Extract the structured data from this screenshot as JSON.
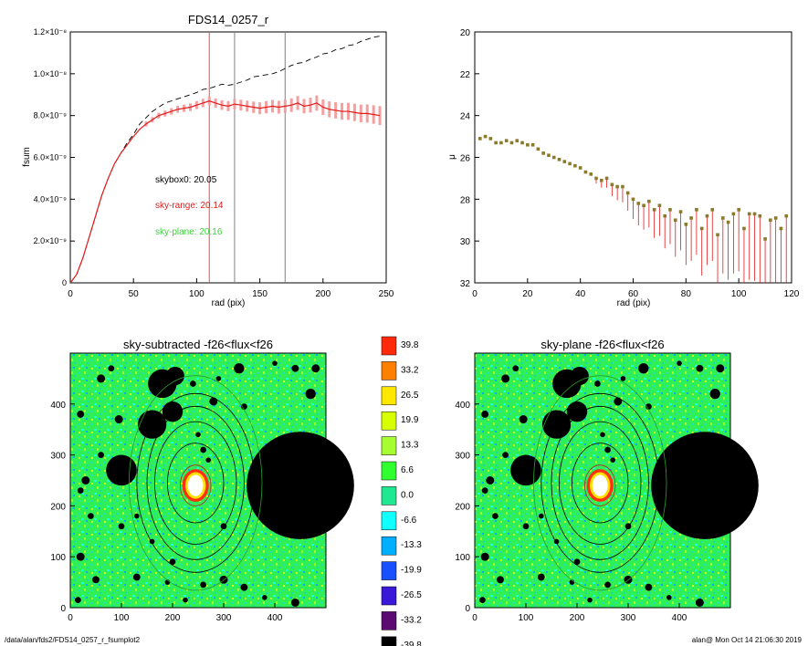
{
  "colors": {
    "axis": "#000000",
    "red": "#e21a1a",
    "pink": "#f4a0a0",
    "green": "#3cd23c",
    "vline_red": "#e05050",
    "vline_gray": "#808080",
    "olive": "#8a7a2a"
  },
  "footer": {
    "left": "/data/alan/fds2/FDS14_0257_r_fsumplot2",
    "right": "alan@  Mon Oct 14 21:06:30 2019"
  },
  "chart_data": [
    {
      "type": "line",
      "title": "FDS14_0257_r",
      "xlabel": "rad (pix)",
      "ylabel": "fsum",
      "xlim": [
        0,
        250
      ],
      "ylim": [
        0,
        1.2e-08
      ],
      "x_ticks": [
        "0",
        "50",
        "100",
        "150",
        "200",
        "250"
      ],
      "y_ticks": [
        "0",
        "2.0×10⁻⁹",
        "4.0×10⁻⁹",
        "6.0×10⁻⁹",
        "8.0×10⁻⁹",
        "1.0×10⁻⁸",
        "1.2×10⁻⁸"
      ],
      "vlines": [
        110,
        130,
        170
      ],
      "annotations": [
        {
          "text": "skybox0: 20.05",
          "color": "black"
        },
        {
          "text": "sky-range: 20.14",
          "color": "red"
        },
        {
          "text": "sky-plane: 20.16",
          "color": "green"
        }
      ],
      "series": [
        {
          "style": "dashed",
          "x": [
            0,
            5,
            10,
            15,
            20,
            25,
            30,
            35,
            40,
            45,
            50,
            55,
            60,
            65,
            70,
            75,
            80,
            85,
            90,
            95,
            100,
            105,
            110,
            115,
            120,
            125,
            130,
            135,
            140,
            145,
            150,
            155,
            160,
            165,
            170,
            175,
            180,
            185,
            190,
            195,
            200,
            205,
            210,
            215,
            220,
            225,
            230,
            235,
            240,
            245
          ],
          "y": [
            0,
            4e-10,
            1.2e-09,
            2.2e-09,
            3.2e-09,
            4.2e-09,
            5e-09,
            5.7e-09,
            6.2e-09,
            6.7e-09,
            7.1e-09,
            7.6e-09,
            7.9e-09,
            8.2e-09,
            8.4e-09,
            8.6e-09,
            8.7e-09,
            8.8e-09,
            8.9e-09,
            9e-09,
            9.1e-09,
            9.25e-09,
            9.3e-09,
            9.4e-09,
            9.5e-09,
            9.45e-09,
            9.5e-09,
            9.6e-09,
            9.7e-09,
            9.85e-09,
            9.9e-09,
            9.95e-09,
            1e-08,
            1.01e-08,
            1.025e-08,
            1.04e-08,
            1.05e-08,
            1.055e-08,
            1.07e-08,
            1.08e-08,
            1.095e-08,
            1.1e-08,
            1.115e-08,
            1.12e-08,
            1.135e-08,
            1.14e-08,
            1.155e-08,
            1.165e-08,
            1.175e-08,
            1.18e-08
          ]
        },
        {
          "style": "solid",
          "x": [
            0,
            5,
            10,
            15,
            20,
            25,
            30,
            35,
            40,
            45,
            50,
            55,
            60,
            65,
            70,
            75,
            80,
            85,
            90,
            95,
            100,
            105,
            110,
            115,
            120,
            125,
            130,
            135,
            140,
            145,
            150,
            155,
            160,
            165,
            170,
            175,
            180,
            185,
            190,
            195,
            200,
            205,
            210,
            215,
            220,
            225,
            230,
            235,
            240,
            245
          ],
          "y": [
            0,
            4e-10,
            1.2e-09,
            2.2e-09,
            3.2e-09,
            4.2e-09,
            5e-09,
            5.7e-09,
            6.2e-09,
            6.6e-09,
            7e-09,
            7.35e-09,
            7.6e-09,
            7.8e-09,
            8e-09,
            8.1e-09,
            8.2e-09,
            8.3e-09,
            8.35e-09,
            8.4e-09,
            8.5e-09,
            8.6e-09,
            8.7e-09,
            8.6e-09,
            8.5e-09,
            8.45e-09,
            8.55e-09,
            8.5e-09,
            8.45e-09,
            8.4e-09,
            8.35e-09,
            8.4e-09,
            8.45e-09,
            8.4e-09,
            8.45e-09,
            8.5e-09,
            8.6e-09,
            8.45e-09,
            8.5e-09,
            8.6e-09,
            8.4e-09,
            8.3e-09,
            8.25e-09,
            8.2e-09,
            8.2e-09,
            8.15e-09,
            8.1e-09,
            8.1e-09,
            8.05e-09,
            8e-09
          ]
        }
      ]
    },
    {
      "type": "scatter",
      "title": "",
      "xlabel": "rad (pix)",
      "ylabel": "μ",
      "xlim": [
        0,
        120
      ],
      "ylim": [
        32,
        20
      ],
      "x_ticks": [
        "0",
        "20",
        "40",
        "60",
        "80",
        "100",
        "120"
      ],
      "y_ticks": [
        "20",
        "22",
        "24",
        "26",
        "28",
        "30",
        "32"
      ],
      "series": [
        {
          "x": [
            2,
            4,
            6,
            8,
            10,
            12,
            14,
            16,
            18,
            20,
            22,
            24,
            26,
            28,
            30,
            32,
            34,
            36,
            38,
            40,
            42,
            44,
            46,
            48,
            50,
            52,
            54,
            56,
            58,
            60,
            62,
            64,
            66,
            68,
            70,
            72,
            74,
            76,
            78,
            80,
            82,
            84,
            86,
            88,
            90,
            92,
            94,
            96,
            98,
            100,
            102,
            104,
            106,
            108,
            110,
            112,
            114,
            116,
            118
          ],
          "y": [
            25.1,
            25.0,
            25.1,
            25.3,
            25.3,
            25.2,
            25.3,
            25.2,
            25.3,
            25.4,
            25.4,
            25.6,
            25.8,
            25.9,
            26.0,
            26.1,
            26.2,
            26.3,
            26.4,
            26.5,
            26.7,
            26.8,
            27.0,
            27.1,
            27.0,
            27.3,
            27.4,
            27.4,
            27.7,
            28.0,
            28.2,
            28.3,
            28.1,
            28.5,
            28.3,
            28.8,
            28.5,
            29.0,
            28.6,
            29.2,
            28.9,
            28.5,
            29.4,
            28.8,
            28.5,
            29.7,
            28.9,
            29.1,
            28.7,
            28.5,
            29.4,
            28.7,
            28.7,
            28.8,
            29.9,
            29.0,
            28.9,
            29.4,
            28.8
          ]
        }
      ]
    },
    {
      "type": "heatmap",
      "title": "sky-subtracted -f26<flux<f26",
      "xlim": [
        0,
        500
      ],
      "ylim": [
        0,
        500
      ],
      "x_ticks": [
        "0",
        "100",
        "200",
        "300",
        "400"
      ],
      "y_ticks": [
        "0",
        "100",
        "200",
        "300",
        "400"
      ]
    },
    {
      "type": "heatmap",
      "title": "sky-plane -f26<flux<f26",
      "xlim": [
        0,
        500
      ],
      "ylim": [
        0,
        500
      ],
      "x_ticks": [
        "0",
        "100",
        "200",
        "300",
        "400"
      ],
      "y_ticks": [
        "0",
        "100",
        "200",
        "300",
        "400"
      ]
    }
  ],
  "colorbar": {
    "labels": [
      "39.8",
      "33.2",
      "26.5",
      "19.9",
      "13.3",
      "6.6",
      "0.0",
      "-6.6",
      "-13.3",
      "-19.9",
      "-26.5",
      "-33.2",
      "-39.8"
    ],
    "colors": [
      "#ff2a0a",
      "#ff8000",
      "#ffe800",
      "#d8ff00",
      "#a8ff30",
      "#30ff30",
      "#20e890",
      "#10ffff",
      "#00b0ff",
      "#1850ff",
      "#3a18d8",
      "#5a0a70",
      "#000000"
    ]
  }
}
